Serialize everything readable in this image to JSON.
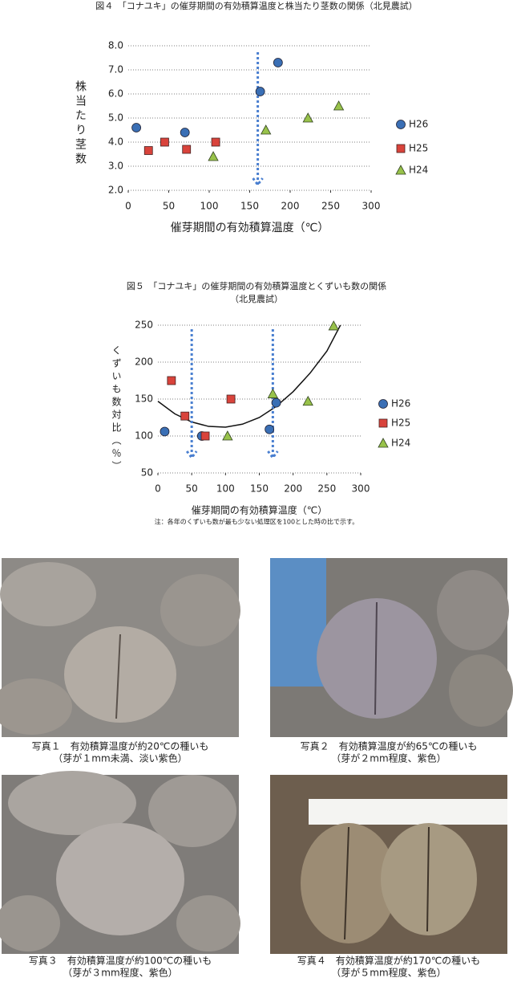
{
  "chart_data": [
    {
      "type": "scatter",
      "title": "図４　「コナユキ」の催芽期間の有効積算温度と株当たり茎数の関係（北見農試）",
      "x_label": "催芽期間の有効積算温度（℃）",
      "y_label": "株当たり茎数",
      "xlim": [
        0,
        300
      ],
      "xticks": [
        0,
        50,
        100,
        150,
        200,
        250,
        300
      ],
      "ylim": [
        2,
        8
      ],
      "yticks": [
        {
          "value": 2,
          "label": "2.0"
        },
        {
          "value": 3,
          "label": "3.0"
        },
        {
          "value": 4,
          "label": "4.0"
        },
        {
          "value": 5,
          "label": "5.0"
        },
        {
          "value": 6,
          "label": "6.0"
        },
        {
          "value": 7,
          "label": "7.0"
        },
        {
          "value": 8,
          "label": "8.0"
        }
      ],
      "grid": true,
      "legend": "right",
      "arrows_x": [
        160
      ],
      "series": [
        {
          "name": "H26",
          "color": "#3a6fb5",
          "marker": "circle",
          "x": [
            10,
            70,
            163,
            185
          ],
          "values": [
            4.6,
            4.4,
            6.1,
            7.3
          ]
        },
        {
          "name": "H25",
          "color": "#d9433b",
          "marker": "square",
          "x": [
            25,
            45,
            72,
            108
          ],
          "values": [
            3.65,
            4.0,
            3.7,
            4.0
          ]
        },
        {
          "name": "H24",
          "color": "#98c24a",
          "marker": "triangle",
          "x": [
            105,
            170,
            222,
            260
          ],
          "values": [
            3.4,
            4.5,
            5.0,
            5.5
          ]
        }
      ]
    },
    {
      "type": "scatter",
      "title": "図５　「コナユキ」の催芽期間の有効積算温度とくずいも数の関係",
      "subtitle": "（北見農試）",
      "x_label": "催芽期間の有効積算温度（℃）",
      "y_label": "くずいも数対比（％）",
      "note": "注：各年のくずいも数が最も少ない処理区を100とした時の比で示す。",
      "xlim": [
        0,
        300
      ],
      "xticks": [
        0,
        50,
        100,
        150,
        200,
        250,
        300
      ],
      "ylim": [
        50,
        250
      ],
      "yticks": [
        50,
        100,
        150,
        200,
        250
      ],
      "grid": true,
      "legend": "right",
      "arrows_x": [
        50,
        170
      ],
      "trend": {
        "x": [
          0,
          25,
          50,
          75,
          100,
          125,
          150,
          175,
          200,
          225,
          250,
          270
        ],
        "values": [
          147,
          130,
          119,
          113,
          112,
          116,
          125,
          140,
          160,
          185,
          215,
          250
        ]
      },
      "series": [
        {
          "name": "H26",
          "color": "#3a6fb5",
          "marker": "circle",
          "x": [
            10,
            65,
            165,
            175
          ],
          "values": [
            106,
            100,
            109,
            145
          ]
        },
        {
          "name": "H25",
          "color": "#d9433b",
          "marker": "square",
          "x": [
            20,
            40,
            70,
            108
          ],
          "values": [
            175,
            127,
            100,
            150
          ]
        },
        {
          "name": "H24",
          "color": "#98c24a",
          "marker": "triangle",
          "x": [
            103,
            170,
            222,
            260
          ],
          "values": [
            100,
            157,
            147,
            249
          ]
        }
      ]
    }
  ],
  "photos": [
    {
      "caption_title": "写真１　有効積算温度が約20℃の種いも",
      "caption_detail": "（芽が１mm未満、淡い紫色）"
    },
    {
      "caption_title": "写真２　有効積算温度が約65℃の種いも",
      "caption_detail": "（芽が２mm程度、紫色）"
    },
    {
      "caption_title": "写真３　有効積算温度が約100℃の種いも",
      "caption_detail": "（芽が３mm程度、紫色）"
    },
    {
      "caption_title": "写真４　有効積算温度が約170℃の種いも",
      "caption_detail": "（芽が５mm程度、紫色）"
    }
  ]
}
